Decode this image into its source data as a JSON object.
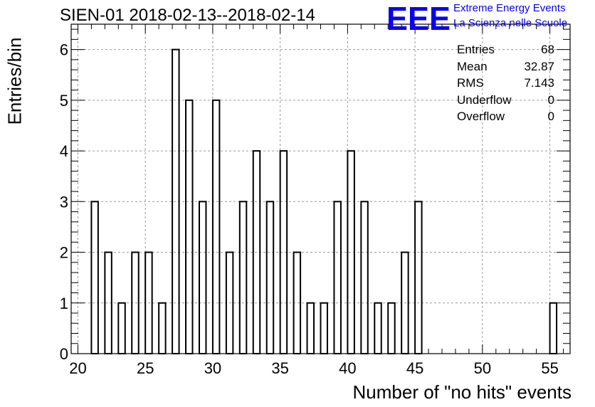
{
  "title": "SIEN-01 2018-02-13--2018-02-14",
  "logo": {
    "mark": "EEE",
    "line1": "Extreme Energy Events",
    "line2": "La Scienza nelle Scuole",
    "color": "#0b00ee"
  },
  "stats": [
    {
      "label": "Entries",
      "value": "68"
    },
    {
      "label": "Mean",
      "value": "32.87"
    },
    {
      "label": "RMS",
      "value": "7.143"
    },
    {
      "label": "Underflow",
      "value": "0"
    },
    {
      "label": "Overflow",
      "value": "0"
    }
  ],
  "chart_data": {
    "type": "bar",
    "subtype": "histogram",
    "xlabel": "Number of \"no hits\" events",
    "ylabel": "Entries/bin",
    "xlim": [
      19.5,
      56.5
    ],
    "ylim": [
      0,
      6.5
    ],
    "bin_width": 0.5,
    "x_ticks": [
      20,
      25,
      30,
      35,
      40,
      45,
      50,
      55
    ],
    "y_ticks": [
      0,
      1,
      2,
      3,
      4,
      5,
      6
    ],
    "grid": true,
    "bins": [
      {
        "x": 21,
        "value": 3
      },
      {
        "x": 22,
        "value": 2
      },
      {
        "x": 23,
        "value": 1
      },
      {
        "x": 24,
        "value": 2
      },
      {
        "x": 25,
        "value": 2
      },
      {
        "x": 26,
        "value": 1
      },
      {
        "x": 27,
        "value": 6
      },
      {
        "x": 28,
        "value": 5
      },
      {
        "x": 29,
        "value": 3
      },
      {
        "x": 30,
        "value": 5
      },
      {
        "x": 31,
        "value": 2
      },
      {
        "x": 32,
        "value": 3
      },
      {
        "x": 33,
        "value": 4
      },
      {
        "x": 34,
        "value": 3
      },
      {
        "x": 35,
        "value": 4
      },
      {
        "x": 36,
        "value": 2
      },
      {
        "x": 37,
        "value": 1
      },
      {
        "x": 38,
        "value": 1
      },
      {
        "x": 39,
        "value": 3
      },
      {
        "x": 40,
        "value": 4
      },
      {
        "x": 41,
        "value": 3
      },
      {
        "x": 42,
        "value": 1
      },
      {
        "x": 43,
        "value": 1
      },
      {
        "x": 44,
        "value": 2
      },
      {
        "x": 45,
        "value": 3
      },
      {
        "x": 55,
        "value": 1
      }
    ]
  }
}
